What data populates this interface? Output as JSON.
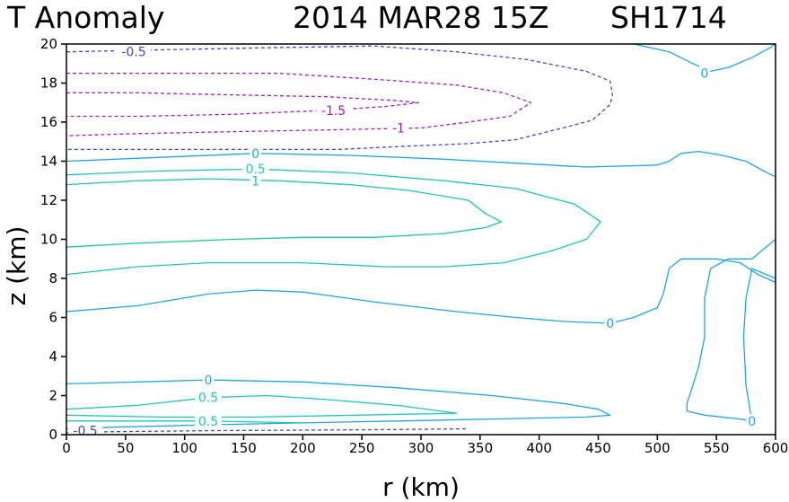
{
  "chart_data": {
    "type": "contour",
    "title": {
      "variable": "T Anomaly",
      "date": "2014 MAR28 15Z",
      "storm": "SH1714"
    },
    "xlabel": "r (km)",
    "ylabel": "z (km)",
    "xlim": [
      0,
      600
    ],
    "ylim": [
      0,
      20
    ],
    "x_ticks": [
      0,
      50,
      100,
      150,
      200,
      250,
      300,
      350,
      400,
      450,
      500,
      550,
      600
    ],
    "y_ticks": [
      0,
      2,
      4,
      6,
      8,
      10,
      12,
      14,
      16,
      18,
      20
    ],
    "colors": {
      "minus_0_5": "#3a4ad6",
      "minus_1": "#a020c0",
      "minus_1_5": "#a020c0",
      "zero": "#1ea6e6",
      "plus_0_5": "#1ec8b4",
      "plus_1": "#1ec8a0"
    },
    "contours": [
      {
        "level": -0.5,
        "label": "-0.5",
        "dashed": true,
        "label_at": [
          57,
          19.6
        ],
        "points": [
          [
            0,
            19.6
          ],
          [
            80,
            19.7
          ],
          [
            160,
            19.8
          ],
          [
            260,
            19.9
          ],
          [
            330,
            19.6
          ],
          [
            390,
            19.2
          ],
          [
            440,
            18.6
          ],
          [
            460,
            18.1
          ],
          [
            462,
            17.4
          ],
          [
            460,
            16.9
          ],
          [
            445,
            16.1
          ],
          [
            420,
            15.7
          ],
          [
            380,
            15.1
          ],
          [
            340,
            14.9
          ],
          [
            300,
            14.8
          ],
          [
            230,
            14.6
          ],
          [
            150,
            14.6
          ],
          [
            60,
            14.6
          ],
          [
            0,
            14.6
          ]
        ]
      },
      {
        "level": -0.5,
        "label": "-0.5",
        "dashed": true,
        "label_at": [
          16,
          0.2
        ],
        "points": [
          [
            0,
            0.1
          ],
          [
            40,
            0.15
          ],
          [
            120,
            0.2
          ],
          [
            250,
            0.25
          ],
          [
            340,
            0.3
          ]
        ]
      },
      {
        "level": -1,
        "label": "-1",
        "dashed": true,
        "label_at": [
          281,
          15.7
        ],
        "points": [
          [
            0,
            18.5
          ],
          [
            80,
            18.5
          ],
          [
            180,
            18.5
          ],
          [
            260,
            18.2
          ],
          [
            330,
            17.9
          ],
          [
            370,
            17.5
          ],
          [
            393,
            17.0
          ],
          [
            375,
            16.3
          ],
          [
            340,
            16.0
          ],
          [
            300,
            15.7
          ],
          [
            220,
            15.6
          ],
          [
            130,
            15.5
          ],
          [
            50,
            15.4
          ],
          [
            0,
            15.3
          ]
        ]
      },
      {
        "level": -1.5,
        "label": "-1.5",
        "dashed": true,
        "label_at": [
          226,
          16.6
        ],
        "points": [
          [
            0,
            17.5
          ],
          [
            60,
            17.5
          ],
          [
            140,
            17.4
          ],
          [
            220,
            17.3
          ],
          [
            280,
            17.1
          ],
          [
            298,
            17.0
          ],
          [
            270,
            16.8
          ],
          [
            220,
            16.6
          ],
          [
            140,
            16.4
          ],
          [
            60,
            16.3
          ],
          [
            0,
            16.3
          ]
        ]
      },
      {
        "level": 0,
        "label": "0",
        "dashed": false,
        "label_at": [
          160,
          14.4
        ],
        "points": [
          [
            0,
            14.0
          ],
          [
            80,
            14.2
          ],
          [
            160,
            14.4
          ],
          [
            240,
            14.3
          ],
          [
            320,
            14.1
          ],
          [
            380,
            13.9
          ],
          [
            440,
            13.7
          ],
          [
            500,
            13.8
          ],
          [
            510,
            14.0
          ],
          [
            520,
            14.4
          ],
          [
            535,
            14.5
          ],
          [
            555,
            14.3
          ],
          [
            575,
            14.0
          ],
          [
            590,
            13.5
          ],
          [
            600,
            13.2
          ]
        ]
      },
      {
        "level": 0,
        "label": "0",
        "dashed": false,
        "label_at": [
          540,
          18.5
        ],
        "points": [
          [
            480,
            20
          ],
          [
            510,
            19.6
          ],
          [
            530,
            19.0
          ],
          [
            545,
            18.6
          ],
          [
            560,
            18.8
          ],
          [
            580,
            19.3
          ],
          [
            595,
            19.8
          ],
          [
            600,
            20
          ]
        ]
      },
      {
        "level": 0,
        "label": "0",
        "dashed": false,
        "label_at": [
          460,
          5.7
        ],
        "points": [
          [
            0,
            6.3
          ],
          [
            60,
            6.6
          ],
          [
            120,
            7.2
          ],
          [
            160,
            7.4
          ],
          [
            200,
            7.3
          ],
          [
            260,
            6.8
          ],
          [
            330,
            6.3
          ],
          [
            380,
            6.0
          ],
          [
            420,
            5.8
          ],
          [
            460,
            5.7
          ],
          [
            480,
            6.0
          ],
          [
            500,
            6.5
          ],
          [
            505,
            7.2
          ],
          [
            510,
            8.5
          ],
          [
            520,
            9.0
          ],
          [
            550,
            9.0
          ],
          [
            570,
            8.8
          ],
          [
            585,
            8.2
          ],
          [
            600,
            7.8
          ]
        ]
      },
      {
        "level": 0,
        "label": "0",
        "dashed": false,
        "label_at": [
          120,
          2.8
        ],
        "points": [
          [
            0,
            2.6
          ],
          [
            60,
            2.7
          ],
          [
            120,
            2.8
          ],
          [
            200,
            2.7
          ],
          [
            280,
            2.4
          ],
          [
            360,
            2.0
          ],
          [
            420,
            1.6
          ],
          [
            450,
            1.3
          ],
          [
            460,
            1.0
          ],
          [
            440,
            0.9
          ],
          [
            360,
            0.8
          ],
          [
            280,
            0.7
          ],
          [
            200,
            0.6
          ],
          [
            120,
            0.5
          ],
          [
            50,
            0.4
          ],
          [
            0,
            0.3
          ]
        ]
      },
      {
        "level": 0,
        "label": "0",
        "dashed": false,
        "label_at": [
          580,
          0.7
        ],
        "points": [
          [
            600,
            10
          ],
          [
            580,
            9.0
          ],
          [
            560,
            9.0
          ],
          [
            545,
            8.5
          ],
          [
            540,
            7.0
          ],
          [
            540,
            5.0
          ],
          [
            535,
            3.5
          ],
          [
            530,
            2.5
          ],
          [
            525,
            1.6
          ],
          [
            525,
            1.2
          ],
          [
            540,
            1.0
          ],
          [
            570,
            0.8
          ],
          [
            580,
            0.7
          ],
          [
            575,
            2.5
          ],
          [
            573,
            5.0
          ],
          [
            575,
            7.0
          ],
          [
            580,
            8.5
          ],
          [
            600,
            8.0
          ]
        ]
      },
      {
        "level": 0.5,
        "label": "0.5",
        "dashed": false,
        "label_at": [
          160,
          13.6
        ],
        "points": [
          [
            0,
            13.3
          ],
          [
            80,
            13.5
          ],
          [
            160,
            13.6
          ],
          [
            240,
            13.4
          ],
          [
            320,
            13.0
          ],
          [
            380,
            12.6
          ],
          [
            430,
            11.8
          ],
          [
            452,
            10.9
          ],
          [
            440,
            10.0
          ],
          [
            410,
            9.4
          ],
          [
            370,
            8.8
          ],
          [
            320,
            8.6
          ],
          [
            270,
            8.6
          ],
          [
            200,
            8.8
          ],
          [
            120,
            8.8
          ],
          [
            60,
            8.6
          ],
          [
            0,
            8.2
          ]
        ]
      },
      {
        "level": 0.5,
        "label": "0.5",
        "dashed": false,
        "label_at": [
          120,
          1.9
        ],
        "points": [
          [
            0,
            1.3
          ],
          [
            60,
            1.5
          ],
          [
            120,
            1.9
          ],
          [
            170,
            2.0
          ],
          [
            220,
            1.8
          ],
          [
            280,
            1.5
          ],
          [
            330,
            1.1
          ],
          [
            245,
            1.0
          ],
          [
            160,
            0.9
          ],
          [
            80,
            0.9
          ],
          [
            0,
            1.0
          ]
        ]
      },
      {
        "level": 0.5,
        "label": "0.5",
        "dashed": false,
        "label_at": [
          120,
          0.7
        ],
        "points": [
          [
            0,
            0.7
          ],
          [
            60,
            0.7
          ],
          [
            120,
            0.7
          ],
          [
            160,
            0.65
          ],
          [
            200,
            0.6
          ]
        ]
      },
      {
        "level": 1,
        "label": "1",
        "dashed": false,
        "label_at": [
          160,
          13.0
        ],
        "points": [
          [
            0,
            12.8
          ],
          [
            60,
            13.0
          ],
          [
            120,
            13.1
          ],
          [
            180,
            13.0
          ],
          [
            240,
            12.8
          ],
          [
            290,
            12.5
          ],
          [
            340,
            12.0
          ],
          [
            355,
            11.3
          ],
          [
            368,
            10.9
          ],
          [
            355,
            10.6
          ],
          [
            320,
            10.3
          ],
          [
            260,
            10.1
          ],
          [
            200,
            10.1
          ],
          [
            140,
            10.0
          ],
          [
            60,
            9.8
          ],
          [
            0,
            9.6
          ]
        ]
      }
    ]
  }
}
